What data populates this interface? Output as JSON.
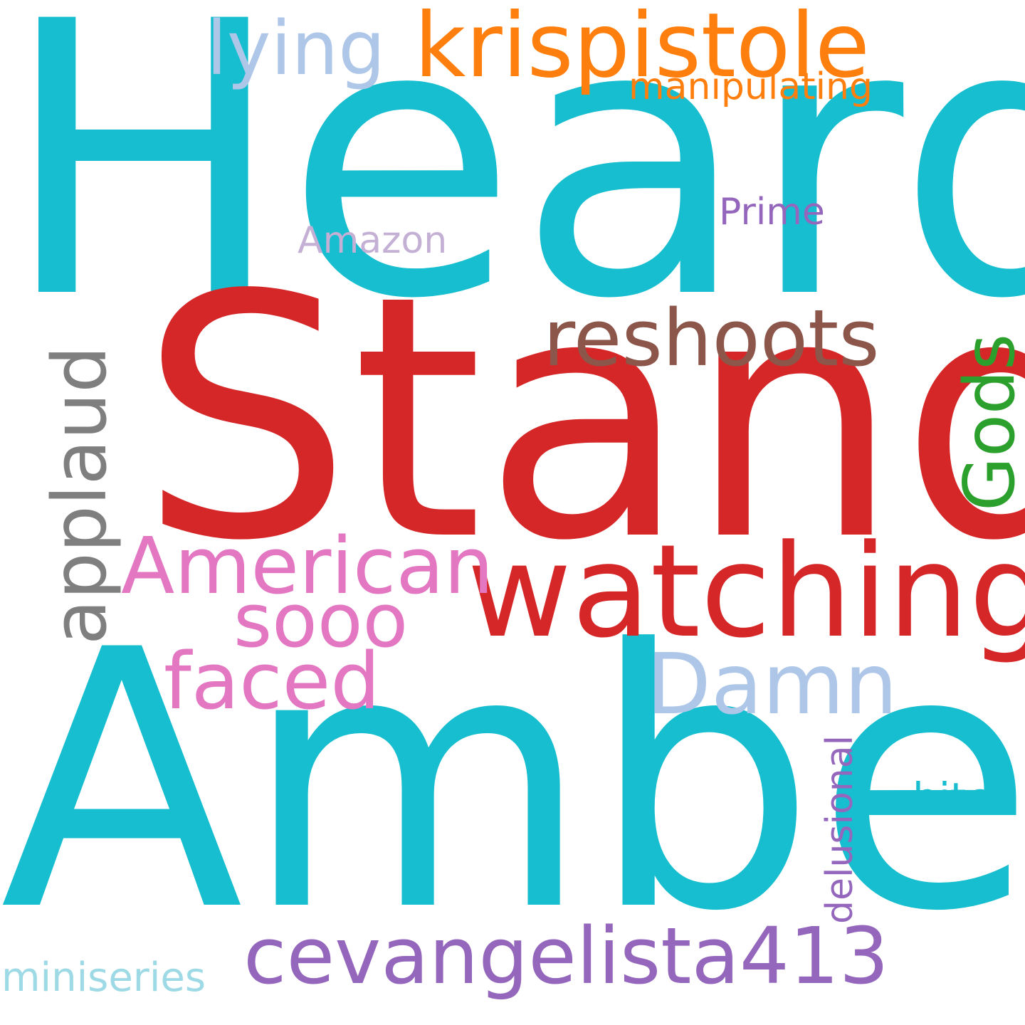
{
  "words": {
    "heard": {
      "text": "Heard",
      "color": "#17becf"
    },
    "stand": {
      "text": "Stand",
      "color": "#d62728"
    },
    "amber": {
      "text": "Amber",
      "color": "#17becf"
    },
    "watching": {
      "text": "watching",
      "color": "#d62728"
    },
    "krispistole": {
      "text": "krispistole",
      "color": "#ff7f0e"
    },
    "lying": {
      "text": "lying",
      "color": "#aec7e8"
    },
    "manipulating": {
      "text": "manipulating",
      "color": "#ff7f0e"
    },
    "reshoots": {
      "text": "reshoots",
      "color": "#8c564b"
    },
    "gods": {
      "text": "Gods",
      "color": "#2ca02c"
    },
    "applaud": {
      "text": "applaud",
      "color": "#7f7f7f"
    },
    "american": {
      "text": "American",
      "color": "#e377c2"
    },
    "sooo": {
      "text": "sooo",
      "color": "#e377c2"
    },
    "faced": {
      "text": "faced",
      "color": "#e377c2"
    },
    "damn": {
      "text": "Damn",
      "color": "#aec7e8"
    },
    "cevangelista": {
      "text": "cevangelista413",
      "color": "#9467bd"
    },
    "delusional": {
      "text": "delusional",
      "color": "#9467bd"
    },
    "bitch": {
      "text": "bitch",
      "color": "#17becf"
    },
    "miniseries": {
      "text": "miniseries",
      "color": "#9edae5"
    },
    "prime": {
      "text": "Prime",
      "color": "#9467bd"
    },
    "amazon": {
      "text": "Amazon",
      "color": "#c5b0d5"
    }
  }
}
